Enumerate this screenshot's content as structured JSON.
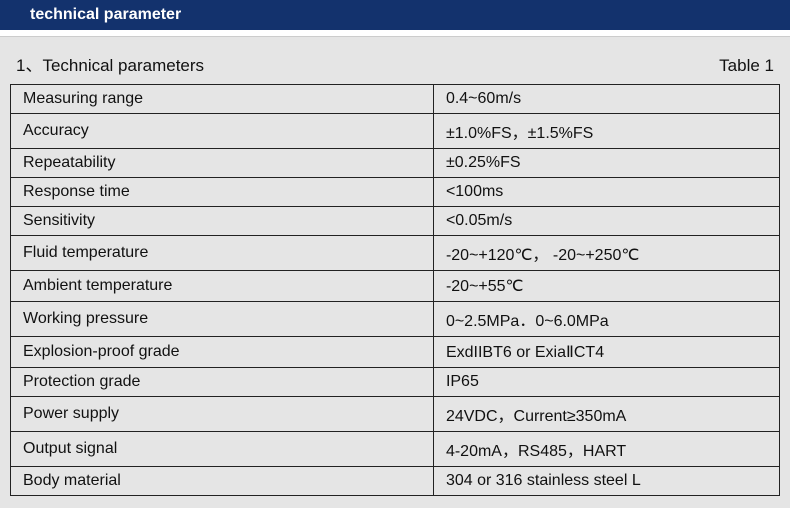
{
  "header": {
    "title": "technical parameter"
  },
  "section": {
    "heading": "1、Technical parameters",
    "table_label": "Table 1"
  },
  "rows": [
    {
      "key": "Measuring range",
      "val": "0.4~60m/s"
    },
    {
      "key": "Accuracy",
      "val": "±1.0%FS，±1.5%FS"
    },
    {
      "key": "Repeatability",
      "val": "±0.25%FS"
    },
    {
      "key": "Response time",
      "val": "<100ms"
    },
    {
      "key": "Sensitivity",
      "val": "<0.05m/s"
    },
    {
      "key": "Fluid temperature",
      "val": "-20~+120℃， -20~+250℃"
    },
    {
      "key": "Ambient temperature",
      "val": "-20~+55℃"
    },
    {
      "key": "Working pressure",
      "val": "0~2.5MPa．0~6.0MPa"
    },
    {
      "key": "Explosion-proof grade",
      "val": "ExdIIBT6 or ExiaⅡCT4"
    },
    {
      "key": "Protection grade",
      "val": "IP65"
    },
    {
      "key": "Power supply",
      "val": "24VDC，Current≥350mA"
    },
    {
      "key": "Output signal",
      "val": "4-20mA，RS485，HART"
    },
    {
      "key": "Body material",
      "val": "304 or 316 stainless steel L"
    }
  ],
  "style": {
    "header_bg": "#13326d",
    "header_fg": "#ffffff",
    "body_bg": "#e5e5e5",
    "border": "#222222",
    "text": "#111111",
    "header_fontsize": 16,
    "body_fontsize": 16,
    "title_fontsize": 17,
    "key_col_width_pct": 55
  }
}
